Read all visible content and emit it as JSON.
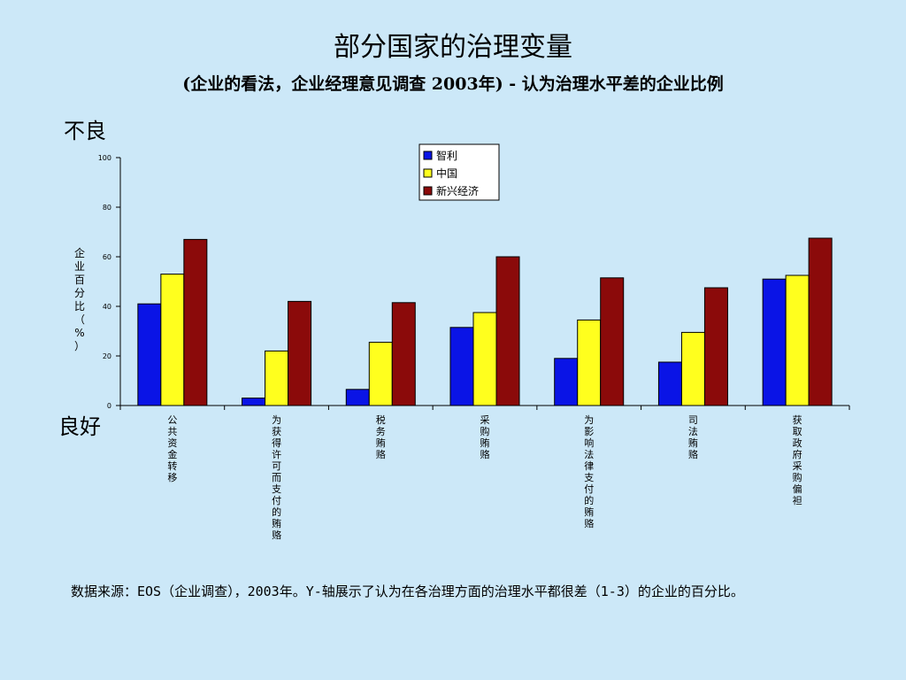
{
  "header": {
    "title": "部分国家的治理变量",
    "subtitle": "(企业的看法，企业经理意见调查 2003年) - 认为治理水平差的企业比例"
  },
  "annotations": {
    "bad": "不良",
    "good": "良好"
  },
  "footer": {
    "source": "数据来源：EOS（企业调查），2003年。Y-轴展示了认为在各治理方面的治理水平都很差（1-3）的企业的百分比。"
  },
  "colors": {
    "background": "#cce8f8",
    "series": [
      "#0a14e6",
      "#ffff1e",
      "#8b0a0a"
    ]
  },
  "chart_data": {
    "type": "bar",
    "categories": [
      "公共资金转移",
      "为获得许可而支付的贿赂",
      "税务贿赂",
      "采购贿赂",
      "为影响法律支付的贿赂",
      "司法贿赂",
      "获取政府采购偏袒"
    ],
    "series": [
      {
        "name": "智利",
        "values": [
          41,
          3,
          6.5,
          31.5,
          19,
          17.5,
          51
        ]
      },
      {
        "name": "中国",
        "values": [
          53,
          22,
          25.5,
          37.5,
          34.5,
          29.5,
          52.5
        ]
      },
      {
        "name": "新兴经济",
        "values": [
          67,
          42,
          41.5,
          60,
          51.5,
          47.5,
          67.5
        ]
      }
    ],
    "ylabel": "企业百分比（%）",
    "ylim": [
      0,
      100
    ],
    "yticks": [
      0,
      20,
      40,
      60,
      80,
      100
    ],
    "grid": false,
    "legend_position": "top-center"
  }
}
